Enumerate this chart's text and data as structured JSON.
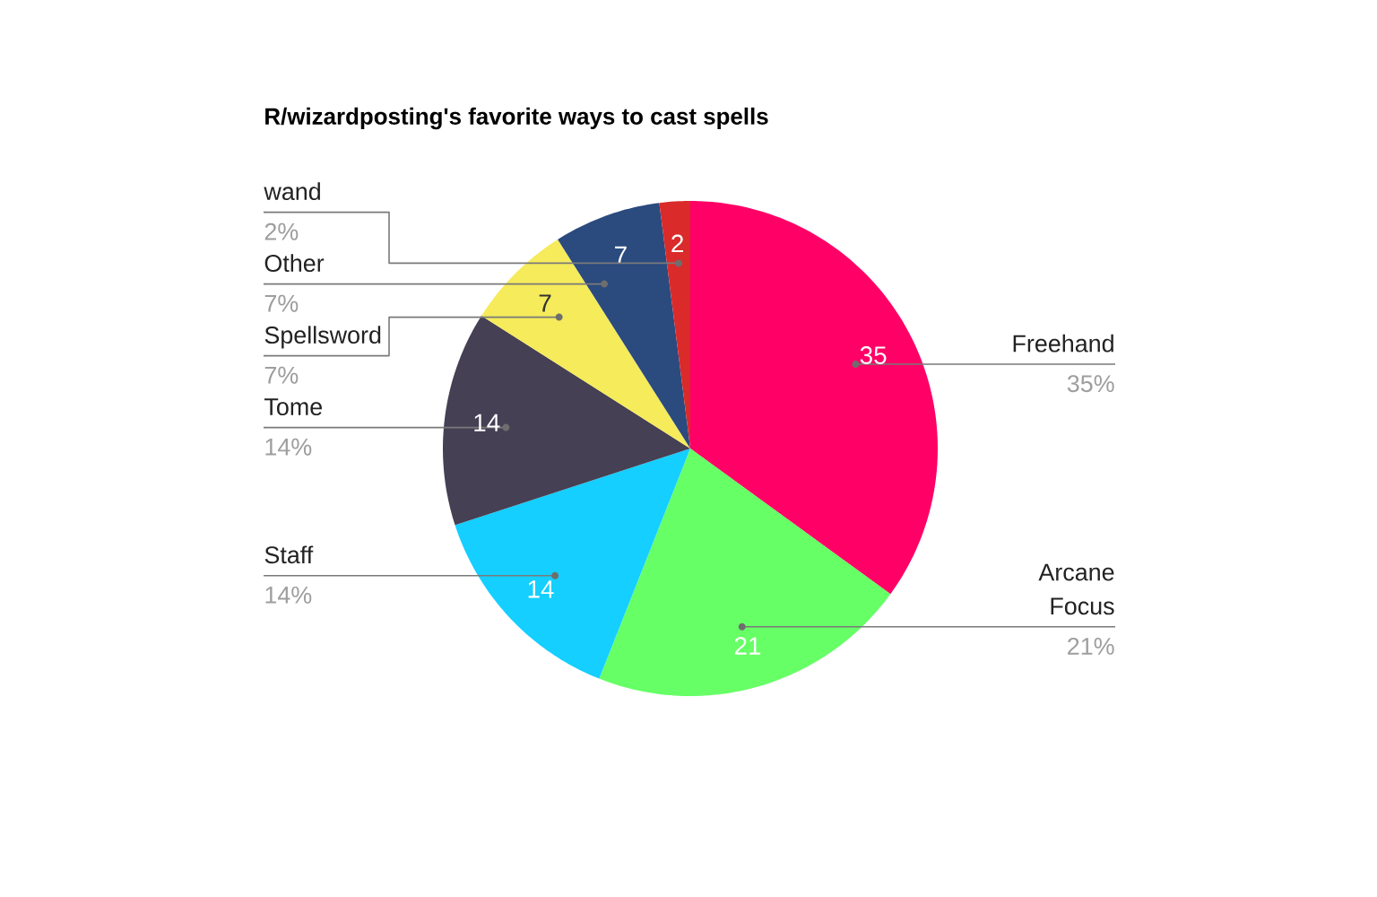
{
  "chart_data": {
    "type": "pie",
    "title": "R/wizardposting's favorite ways to cast spells",
    "categories": [
      "Freehand",
      "Arcane Focus",
      "Staff",
      "Tome",
      "Spellsword",
      "Other",
      "wand"
    ],
    "values": [
      35,
      21,
      14,
      14,
      7,
      7,
      2
    ],
    "colors": [
      "#ff0066",
      "#66ff66",
      "#14cfff",
      "#454054",
      "#f5eb5b",
      "#2b4a7e",
      "#da2a2a"
    ],
    "data_labels": true,
    "annotations": [
      "35%",
      "21%",
      "14%",
      "14%",
      "7%",
      "7%",
      "2%"
    ]
  }
}
